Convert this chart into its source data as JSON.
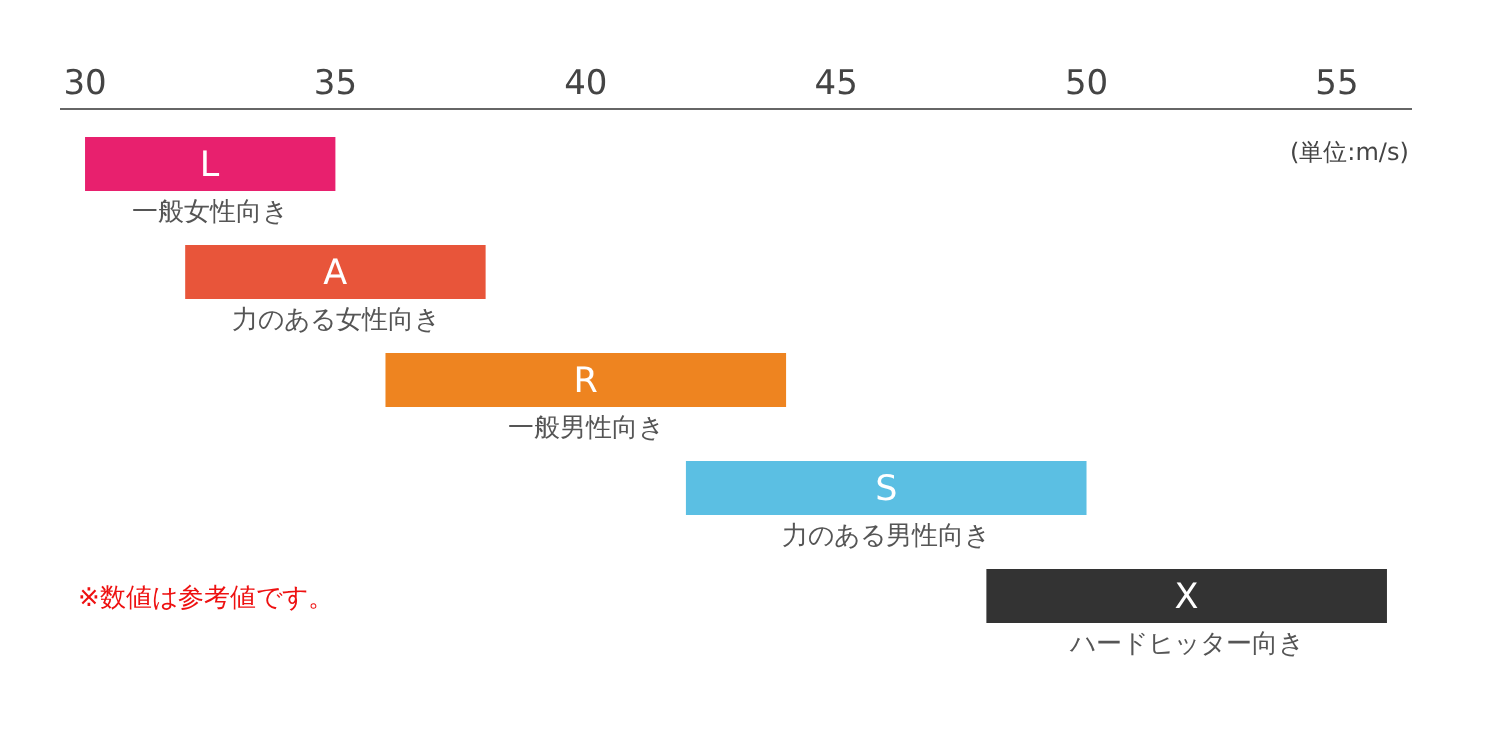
{
  "chart_data": {
    "type": "bar",
    "orientation": "horizontal",
    "categories": [
      "L",
      "A",
      "R",
      "S",
      "X"
    ],
    "base": [
      30,
      32,
      36,
      42,
      48
    ],
    "values": [
      5,
      6,
      8,
      8,
      8
    ],
    "colors": [
      "#e8206e",
      "#e8553a",
      "#ee8420",
      "#5bbfe3",
      "#333333"
    ],
    "xlim": [
      29.5,
      56.5
    ],
    "xticks": [
      30,
      35,
      40,
      45,
      50,
      55
    ],
    "xlabel": "(単位:m/s)",
    "tick_labels": "x",
    "annotations": [
      "一般女性向き",
      "力のある女性向き",
      "一般男性向き",
      "力のある男性向き",
      "ハードヒッター向き",
      "※数値は参考値です。"
    ]
  }
}
